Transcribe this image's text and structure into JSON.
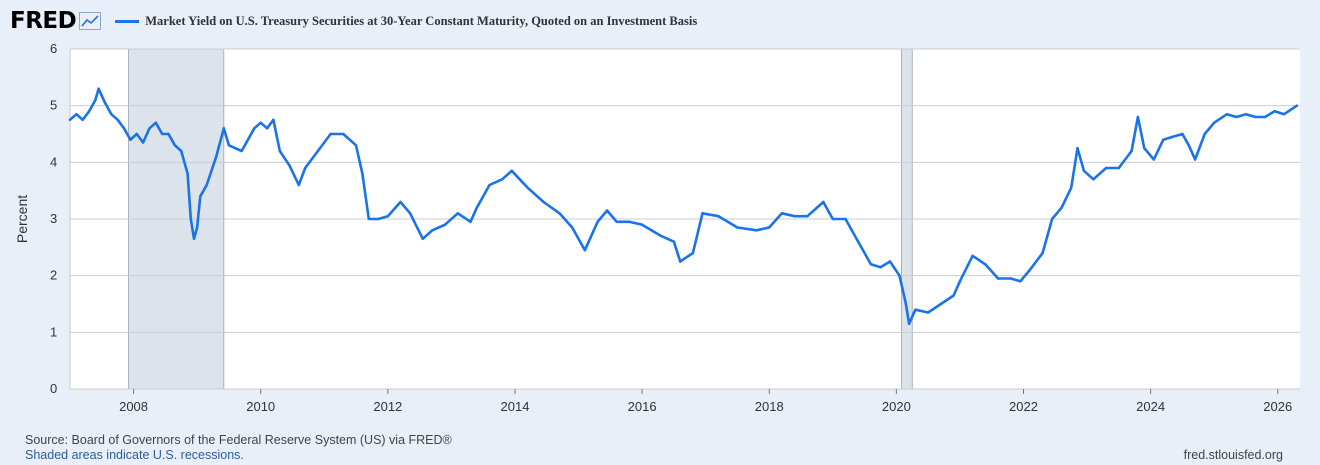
{
  "header": {
    "logo": "FRED",
    "logo_icon": "trend-line-icon"
  },
  "footer": {
    "source": "Source: Board of Governors of the Federal Reserve System (US) via FRED®",
    "shaded": "Shaded areas indicate U.S. recessions.",
    "url": "fred.stlouisfed.org"
  },
  "colors": {
    "series": "#1a73e8",
    "recession": "#dde3ea",
    "background": "#e8eff8",
    "plot": "#ffffff",
    "grid": "#c9cdd3"
  },
  "chart_data": {
    "type": "line",
    "title": "",
    "xlabel": "",
    "ylabel": "Percent",
    "ylim": [
      0,
      6
    ],
    "xlim": [
      2007.0,
      2026.35
    ],
    "yticks": [
      0,
      1,
      2,
      3,
      4,
      5,
      6
    ],
    "xticks": [
      "2008",
      "2010",
      "2012",
      "2014",
      "2016",
      "2018",
      "2020",
      "2022",
      "2024",
      "2026"
    ],
    "grid": "horizontal",
    "legend": "top-left",
    "recessions": [
      [
        2007.92,
        2009.42
      ],
      [
        2020.08,
        2020.25
      ]
    ],
    "series": [
      {
        "name": "Market Yield on U.S. Treasury Securities at 30-Year Constant Maturity, Quoted on an Investment Basis",
        "x": [
          2007.0,
          2007.1,
          2007.2,
          2007.3,
          2007.4,
          2007.45,
          2007.55,
          2007.65,
          2007.75,
          2007.85,
          2007.95,
          2008.05,
          2008.15,
          2008.25,
          2008.35,
          2008.45,
          2008.55,
          2008.65,
          2008.75,
          2008.85,
          2008.9,
          2008.95,
          2009.0,
          2009.05,
          2009.15,
          2009.3,
          2009.42,
          2009.5,
          2009.6,
          2009.7,
          2009.8,
          2009.9,
          2010.0,
          2010.1,
          2010.2,
          2010.3,
          2010.45,
          2010.6,
          2010.7,
          2010.9,
          2011.1,
          2011.3,
          2011.5,
          2011.6,
          2011.7,
          2011.85,
          2012.0,
          2012.2,
          2012.35,
          2012.55,
          2012.7,
          2012.9,
          2013.1,
          2013.3,
          2013.4,
          2013.6,
          2013.8,
          2013.95,
          2014.2,
          2014.45,
          2014.7,
          2014.9,
          2015.1,
          2015.3,
          2015.45,
          2015.6,
          2015.8,
          2016.0,
          2016.3,
          2016.5,
          2016.6,
          2016.8,
          2016.95,
          2017.2,
          2017.5,
          2017.8,
          2018.0,
          2018.2,
          2018.4,
          2018.6,
          2018.85,
          2019.0,
          2019.2,
          2019.4,
          2019.6,
          2019.75,
          2019.9,
          2020.05,
          2020.15,
          2020.2,
          2020.3,
          2020.5,
          2020.7,
          2020.9,
          2021.0,
          2021.2,
          2021.4,
          2021.6,
          2021.8,
          2021.95,
          2022.1,
          2022.3,
          2022.45,
          2022.6,
          2022.75,
          2022.85,
          2022.95,
          2023.1,
          2023.3,
          2023.5,
          2023.7,
          2023.8,
          2023.9,
          2024.05,
          2024.2,
          2024.35,
          2024.5,
          2024.6,
          2024.7,
          2024.85,
          2025.0,
          2025.2,
          2025.35,
          2025.5,
          2025.65,
          2025.8,
          2025.95,
          2026.1,
          2026.3
        ],
        "values": [
          4.75,
          4.85,
          4.75,
          4.9,
          5.1,
          5.3,
          5.05,
          4.85,
          4.75,
          4.6,
          4.4,
          4.5,
          4.35,
          4.6,
          4.7,
          4.5,
          4.5,
          4.3,
          4.2,
          3.8,
          3.0,
          2.65,
          2.85,
          3.4,
          3.6,
          4.1,
          4.6,
          4.3,
          4.25,
          4.2,
          4.4,
          4.6,
          4.7,
          4.6,
          4.75,
          4.2,
          3.95,
          3.6,
          3.9,
          4.2,
          4.5,
          4.5,
          4.3,
          3.8,
          3.0,
          3.0,
          3.05,
          3.3,
          3.1,
          2.65,
          2.8,
          2.9,
          3.1,
          2.95,
          3.2,
          3.6,
          3.7,
          3.85,
          3.55,
          3.3,
          3.1,
          2.85,
          2.45,
          2.95,
          3.15,
          2.95,
          2.95,
          2.9,
          2.7,
          2.6,
          2.25,
          2.4,
          3.1,
          3.05,
          2.85,
          2.8,
          2.85,
          3.1,
          3.05,
          3.05,
          3.3,
          3.0,
          3.0,
          2.6,
          2.2,
          2.15,
          2.25,
          2.0,
          1.5,
          1.15,
          1.4,
          1.35,
          1.5,
          1.65,
          1.9,
          2.35,
          2.2,
          1.95,
          1.95,
          1.9,
          2.1,
          2.4,
          3.0,
          3.2,
          3.55,
          4.25,
          3.85,
          3.7,
          3.9,
          3.9,
          4.2,
          4.8,
          4.25,
          4.05,
          4.4,
          4.45,
          4.5,
          4.3,
          4.05,
          4.5,
          4.7,
          4.85,
          4.8,
          4.85,
          4.8,
          4.8,
          4.9,
          4.85,
          5.0
        ]
      }
    ]
  }
}
